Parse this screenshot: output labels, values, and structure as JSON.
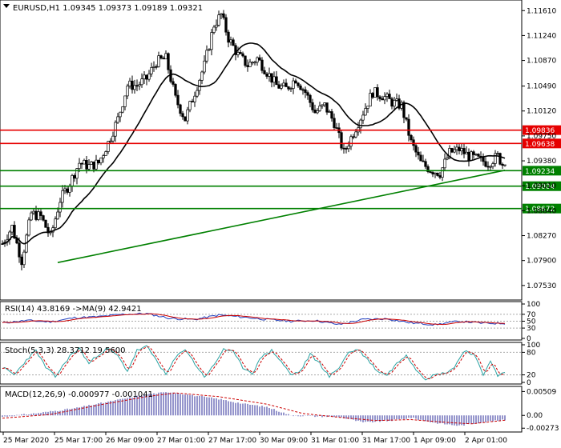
{
  "header": {
    "main": "EURUSD,H1  1.09345 1.09373 1.09189 1.09321",
    "rsi": "RSI(14) 43.8169   ->MA(9) 42.9421",
    "stoch": "Stoch(5,3,3) 28.3712 19.5600",
    "macd": "MACD(12,26,9) -0.000977 -0.001041"
  },
  "colors": {
    "up_candle": "#ffffff",
    "down_candle": "#000000",
    "ma_line": "#000000",
    "resistance": "#e60000",
    "support": "#008000",
    "trendline": "#008000",
    "rsi_line": "#1f3fbf",
    "rsi_ma": "#cc0000",
    "stoch_main": "#2aa3a3",
    "stoch_signal": "#cc0000",
    "macd_hist": "#2b2b9a",
    "macd_signal": "#cc0000"
  },
  "chart_data": [
    {
      "type": "candlestick",
      "symbol": "EURUSD",
      "timeframe": "H1",
      "ohlc_last": {
        "open": 1.09345,
        "high": 1.09373,
        "low": 1.09189,
        "close": 1.09321
      },
      "y_ticks": [
        "1.11610",
        "1.11240",
        "1.10870",
        "1.10490",
        "1.10120",
        "1.09750",
        "1.09380",
        "1.09010",
        "1.08640",
        "1.08270",
        "1.07900",
        "1.07530"
      ],
      "x_ticks": [
        "25 Mar 2020",
        "25 Mar 17:00",
        "26 Mar 09:00",
        "27 Mar 01:00",
        "27 Mar 17:00",
        "30 Mar 09:00",
        "31 Mar 01:00",
        "31 Mar 17:00",
        "1 Apr 09:00",
        "2 Apr 01:00"
      ],
      "ylim": [
        1.0735,
        1.1172
      ],
      "anchors": [
        [
          0,
          1.0815
        ],
        [
          4,
          1.084
        ],
        [
          8,
          1.079
        ],
        [
          12,
          1.086
        ],
        [
          16,
          1.0855
        ],
        [
          20,
          1.0825
        ],
        [
          24,
          1.088
        ],
        [
          28,
          1.0905
        ],
        [
          32,
          1.0935
        ],
        [
          36,
          1.093
        ],
        [
          40,
          1.0935
        ],
        [
          44,
          1.0965
        ],
        [
          48,
          1.1
        ],
        [
          52,
          1.105
        ],
        [
          56,
          1.105
        ],
        [
          60,
          1.106
        ],
        [
          64,
          1.1085
        ],
        [
          68,
          1.109
        ],
        [
          72,
          1.103
        ],
        [
          76,
          1.1
        ],
        [
          80,
          1.104
        ],
        [
          84,
          1.108
        ],
        [
          88,
          1.114
        ],
        [
          91,
          1.1155
        ],
        [
          94,
          1.112
        ],
        [
          98,
          1.1095
        ],
        [
          102,
          1.108
        ],
        [
          106,
          1.109
        ],
        [
          110,
          1.107
        ],
        [
          114,
          1.105
        ],
        [
          118,
          1.1045
        ],
        [
          122,
          1.106
        ],
        [
          126,
          1.104
        ],
        [
          130,
          1.101
        ],
        [
          134,
          1.102
        ],
        [
          138,
          1.0995
        ],
        [
          142,
          1.095
        ],
        [
          146,
          1.098
        ],
        [
          150,
          1.101
        ],
        [
          154,
          1.104
        ],
        [
          158,
          1.1035
        ],
        [
          162,
          1.1025
        ],
        [
          166,
          1.102
        ],
        [
          170,
          1.0965
        ],
        [
          174,
          1.0935
        ],
        [
          178,
          1.0925
        ],
        [
          182,
          1.092
        ],
        [
          186,
          1.095
        ],
        [
          190,
          1.0955
        ],
        [
          194,
          1.0945
        ],
        [
          198,
          1.094
        ],
        [
          202,
          1.0935
        ],
        [
          206,
          1.0945
        ],
        [
          209,
          1.0927
        ]
      ],
      "levels": [
        {
          "value": 1.09836,
          "label": "1.09836",
          "kind": "resistance"
        },
        {
          "value": 1.09638,
          "label": "1.09638",
          "kind": "resistance"
        },
        {
          "value": 1.09234,
          "label": "1.09234",
          "kind": "support"
        },
        {
          "value": 1.09004,
          "label": "1.09004",
          "kind": "support"
        },
        {
          "value": 1.08672,
          "label": "1.08672",
          "kind": "support"
        }
      ],
      "trendline": {
        "from": {
          "bar": 23,
          "value": 1.0787
        },
        "to": {
          "bar": 209,
          "value": 1.0924
        }
      }
    },
    {
      "type": "line",
      "name": "RSI(14)",
      "last_value": 43.8169,
      "ma_last_value": 42.9421,
      "y_ticks": [
        "100",
        "70",
        "50",
        "30",
        "0"
      ],
      "ylim": [
        0,
        100
      ],
      "levels": [
        70,
        50,
        30
      ],
      "anchors": [
        [
          0,
          45
        ],
        [
          10,
          52
        ],
        [
          20,
          48
        ],
        [
          30,
          60
        ],
        [
          40,
          63
        ],
        [
          50,
          70
        ],
        [
          60,
          72
        ],
        [
          70,
          58
        ],
        [
          80,
          55
        ],
        [
          90,
          68
        ],
        [
          100,
          62
        ],
        [
          110,
          55
        ],
        [
          120,
          50
        ],
        [
          130,
          52
        ],
        [
          140,
          40
        ],
        [
          150,
          55
        ],
        [
          160,
          57
        ],
        [
          170,
          45
        ],
        [
          180,
          40
        ],
        [
          190,
          50
        ],
        [
          200,
          44
        ],
        [
          209,
          43.8
        ]
      ]
    },
    {
      "type": "line",
      "name": "Stoch(5,3,3)",
      "last_value": 28.3712,
      "signal_last_value": 19.56,
      "y_ticks": [
        "100",
        "80",
        "20",
        "0"
      ],
      "ylim": [
        0,
        100
      ],
      "levels": [
        80,
        20
      ],
      "anchors": [
        [
          0,
          40
        ],
        [
          5,
          20
        ],
        [
          10,
          60
        ],
        [
          14,
          85
        ],
        [
          18,
          40
        ],
        [
          22,
          15
        ],
        [
          28,
          70
        ],
        [
          32,
          90
        ],
        [
          36,
          50
        ],
        [
          40,
          75
        ],
        [
          44,
          90
        ],
        [
          48,
          70
        ],
        [
          52,
          30
        ],
        [
          56,
          85
        ],
        [
          60,
          95
        ],
        [
          64,
          60
        ],
        [
          68,
          20
        ],
        [
          72,
          65
        ],
        [
          76,
          90
        ],
        [
          80,
          50
        ],
        [
          84,
          15
        ],
        [
          88,
          45
        ],
        [
          92,
          90
        ],
        [
          96,
          80
        ],
        [
          100,
          40
        ],
        [
          104,
          25
        ],
        [
          108,
          70
        ],
        [
          112,
          85
        ],
        [
          116,
          55
        ],
        [
          120,
          20
        ],
        [
          124,
          30
        ],
        [
          128,
          75
        ],
        [
          132,
          50
        ],
        [
          136,
          15
        ],
        [
          140,
          40
        ],
        [
          144,
          80
        ],
        [
          148,
          88
        ],
        [
          152,
          60
        ],
        [
          156,
          30
        ],
        [
          160,
          20
        ],
        [
          164,
          50
        ],
        [
          168,
          75
        ],
        [
          172,
          35
        ],
        [
          176,
          10
        ],
        [
          180,
          20
        ],
        [
          184,
          25
        ],
        [
          188,
          40
        ],
        [
          192,
          85
        ],
        [
          196,
          75
        ],
        [
          200,
          20
        ],
        [
          203,
          60
        ],
        [
          206,
          15
        ],
        [
          209,
          28
        ]
      ]
    },
    {
      "type": "bar",
      "name": "MACD(12,26,9)",
      "last_value": -0.000977,
      "signal_last_value": -0.001041,
      "y_ticks": [
        "0.00509",
        "0.00",
        "-0.00273"
      ],
      "ylim": [
        -0.0032,
        0.0055
      ],
      "anchors": [
        [
          0,
          -0.0003
        ],
        [
          15,
          0.0005
        ],
        [
          30,
          0.0015
        ],
        [
          45,
          0.003
        ],
        [
          60,
          0.0045
        ],
        [
          70,
          0.005
        ],
        [
          80,
          0.0042
        ],
        [
          90,
          0.0035
        ],
        [
          100,
          0.0025
        ],
        [
          110,
          0.0018
        ],
        [
          120,
          0.0
        ],
        [
          130,
          -0.0002
        ],
        [
          140,
          -0.0003
        ],
        [
          150,
          -0.0015
        ],
        [
          160,
          -0.0012
        ],
        [
          170,
          -0.0005
        ],
        [
          180,
          -0.0016
        ],
        [
          190,
          -0.0022
        ],
        [
          200,
          -0.0014
        ],
        [
          209,
          -0.00098
        ]
      ],
      "signal_anchors": [
        [
          0,
          -0.0006
        ],
        [
          20,
          0.0002
        ],
        [
          40,
          0.0022
        ],
        [
          60,
          0.004
        ],
        [
          72,
          0.0048
        ],
        [
          90,
          0.004
        ],
        [
          110,
          0.0024
        ],
        [
          125,
          0.0004
        ],
        [
          140,
          -0.0004
        ],
        [
          155,
          -0.0011
        ],
        [
          170,
          -0.0009
        ],
        [
          185,
          -0.0015
        ],
        [
          195,
          -0.0018
        ],
        [
          209,
          -0.00104
        ]
      ]
    }
  ]
}
